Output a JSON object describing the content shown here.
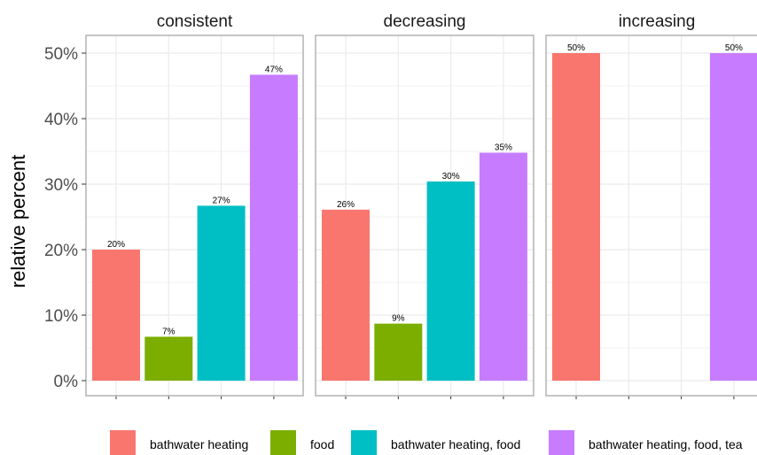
{
  "chart_data": {
    "type": "bar",
    "ylabel": "relative percent",
    "xlabel": "",
    "ylim": [
      0,
      52
    ],
    "yticks": [
      0,
      10,
      20,
      30,
      40,
      50
    ],
    "yticklabels": [
      "0%",
      "10%",
      "20%",
      "30%",
      "40%",
      "50%"
    ],
    "grid": true,
    "legend_position": "bottom",
    "categories": [
      "bathwater heating",
      "food",
      "bathwater heating, food",
      "bathwater heating, food, tea"
    ],
    "colors": [
      "#F8766D",
      "#7CAE00",
      "#00BFC4",
      "#C77CFF"
    ],
    "panels": [
      {
        "name": "consistent",
        "values": [
          20,
          7,
          27,
          47
        ],
        "labels": [
          "20%",
          "7%",
          "27%",
          "47%"
        ],
        "heights": [
          20.0,
          6.7,
          26.7,
          46.7
        ]
      },
      {
        "name": "decreasing",
        "values": [
          26,
          9,
          30,
          35
        ],
        "labels": [
          "26%",
          "9%",
          "30%",
          "35%"
        ],
        "heights": [
          26.1,
          8.7,
          30.4,
          34.8
        ]
      },
      {
        "name": "increasing",
        "values": [
          50,
          null,
          null,
          50
        ],
        "labels": [
          "50%",
          "",
          "",
          "50%"
        ],
        "heights": [
          50,
          null,
          null,
          50
        ]
      }
    ],
    "legend": [
      {
        "label": "bathwater heating",
        "color": "#F8766D"
      },
      {
        "label": "food",
        "color": "#7CAE00"
      },
      {
        "label": "bathwater heating, food",
        "color": "#00BFC4"
      },
      {
        "label": "bathwater heating, food, tea",
        "color": "#C77CFF"
      }
    ]
  }
}
